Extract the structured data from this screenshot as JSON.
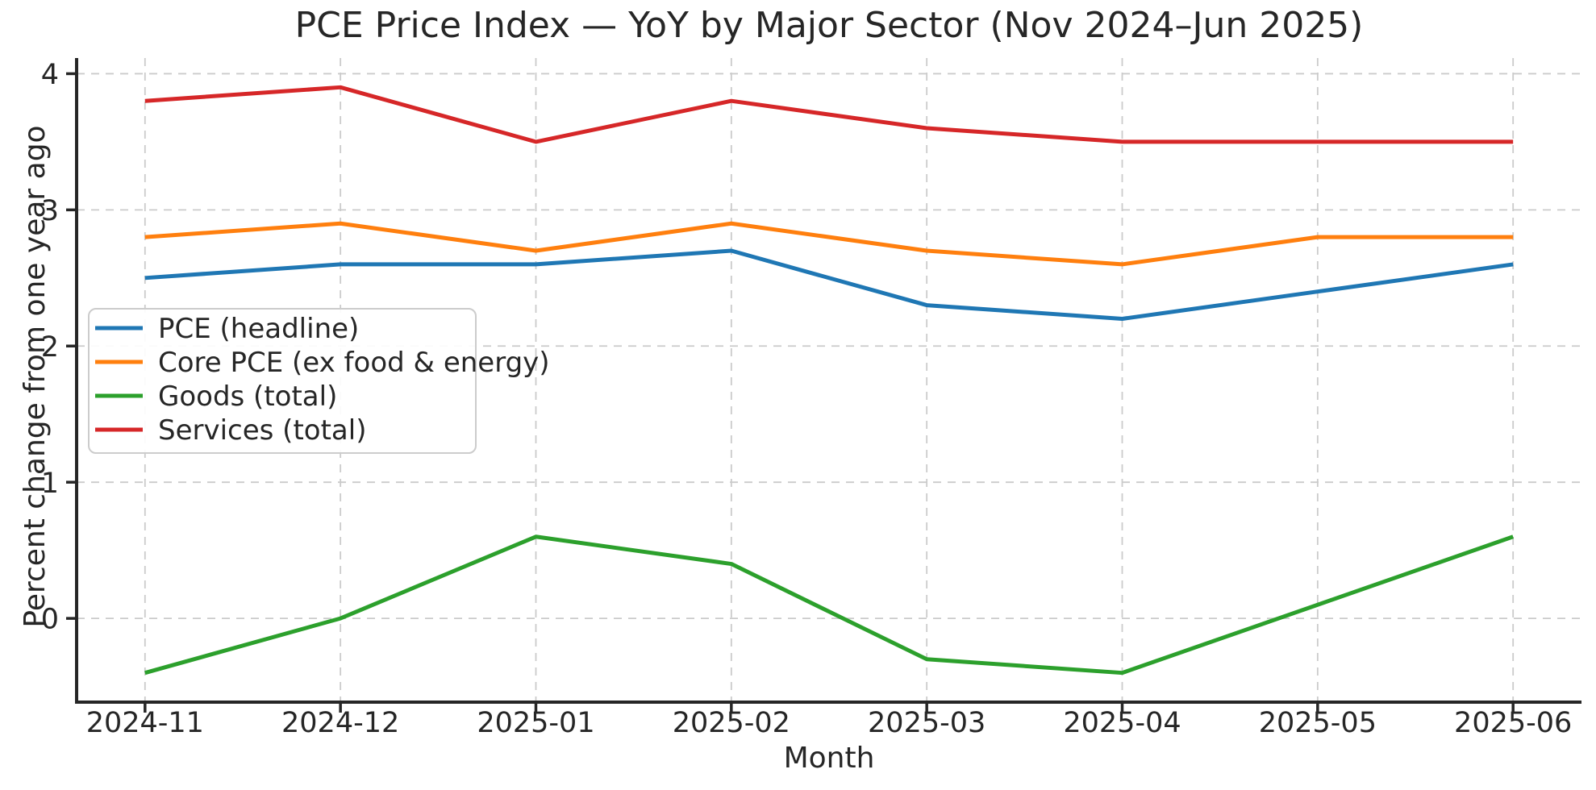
{
  "chart_data": {
    "type": "line",
    "title": "PCE Price Index — YoY by Major Sector (Nov 2024–Jun 2025)",
    "xlabel": "Month",
    "ylabel": "Percent change from one year ago",
    "categories": [
      "2024-11",
      "2024-12",
      "2025-01",
      "2025-02",
      "2025-03",
      "2025-04",
      "2025-05",
      "2025-06"
    ],
    "series": [
      {
        "name": "PCE (headline)",
        "color": "#1f77b4",
        "values": [
          2.5,
          2.6,
          2.6,
          2.7,
          2.3,
          2.2,
          2.4,
          2.6
        ]
      },
      {
        "name": "Core PCE (ex food & energy)",
        "color": "#ff7f0e",
        "values": [
          2.8,
          2.9,
          2.7,
          2.9,
          2.7,
          2.6,
          2.8,
          2.8
        ]
      },
      {
        "name": "Goods (total)",
        "color": "#2ca02c",
        "values": [
          -0.4,
          0.0,
          0.6,
          0.4,
          -0.3,
          -0.4,
          0.1,
          0.6
        ]
      },
      {
        "name": "Services (total)",
        "color": "#d62728",
        "values": [
          3.8,
          3.9,
          3.5,
          3.8,
          3.6,
          3.5,
          3.5,
          3.5
        ]
      }
    ],
    "yticks": [
      0,
      1,
      2,
      3,
      4
    ],
    "ytick_labels": [
      "0",
      "1",
      "2",
      "3",
      "4"
    ],
    "ylim": [
      -0.615,
      4.115
    ],
    "xlim": [
      -0.35,
      7.35
    ],
    "grid": true,
    "grid_style": "dashed",
    "legend_position": "middle-left",
    "style": {
      "background": "#ffffff",
      "grid_color": "#cbcbcb",
      "axis_color": "#262626",
      "text_color": "#262626",
      "legend_border_color": "#cccccc",
      "legend_background": "#ffffff"
    }
  }
}
